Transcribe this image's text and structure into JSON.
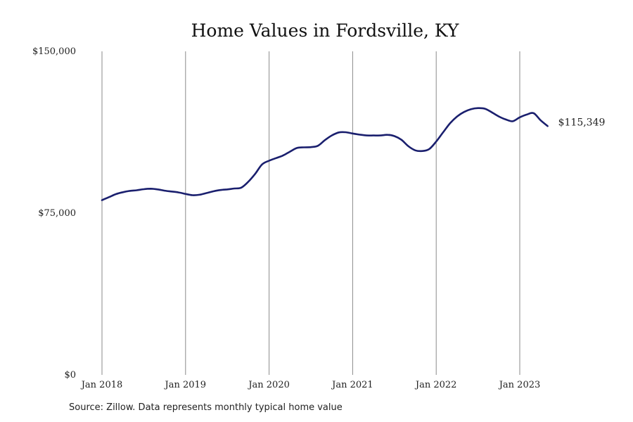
{
  "chart_data": {
    "type": "line",
    "title": "Home Values in Fordsville, KY",
    "xlabel": "",
    "ylabel": "",
    "ylim": [
      0,
      150000
    ],
    "grid": "vertical",
    "color": "#1a1f6e",
    "y_ticks": [
      {
        "value": 0,
        "label": "$0"
      },
      {
        "value": 75000,
        "label": "$75,000"
      },
      {
        "value": 150000,
        "label": "$150,000"
      }
    ],
    "x_ticks": [
      "Jan 2018",
      "Jan 2019",
      "Jan 2020",
      "Jan 2021",
      "Jan 2022",
      "Jan 2023"
    ],
    "x_start": "2018-01",
    "end_label": "$115,349",
    "series": [
      {
        "x": [
          "2018-01",
          "2018-02",
          "2018-03",
          "2018-04",
          "2018-05",
          "2018-06",
          "2018-07",
          "2018-08",
          "2018-09",
          "2018-10",
          "2018-11",
          "2018-12",
          "2019-01",
          "2019-02",
          "2019-03",
          "2019-04",
          "2019-05",
          "2019-06",
          "2019-07",
          "2019-08",
          "2019-09",
          "2019-10",
          "2019-11",
          "2019-12",
          "2020-01",
          "2020-02",
          "2020-03",
          "2020-04",
          "2020-05",
          "2020-06",
          "2020-07",
          "2020-08",
          "2020-09",
          "2020-10",
          "2020-11",
          "2020-12",
          "2021-01",
          "2021-02",
          "2021-03",
          "2021-04",
          "2021-05",
          "2021-06",
          "2021-07",
          "2021-08",
          "2021-09",
          "2021-10",
          "2021-11",
          "2021-12",
          "2022-01",
          "2022-02",
          "2022-03",
          "2022-04",
          "2022-05",
          "2022-06",
          "2022-07",
          "2022-08",
          "2022-09",
          "2022-10",
          "2022-11",
          "2022-12",
          "2023-01",
          "2023-02",
          "2023-03",
          "2023-04",
          "2023-05"
        ],
        "y": [
          81000,
          82400,
          83800,
          84700,
          85300,
          85600,
          86100,
          86300,
          86000,
          85400,
          85000,
          84600,
          83900,
          83300,
          83500,
          84300,
          85100,
          85700,
          86000,
          86400,
          86800,
          89500,
          93200,
          97600,
          99300,
          100500,
          101700,
          103500,
          105200,
          105500,
          105600,
          106200,
          108800,
          111000,
          112400,
          112500,
          111900,
          111400,
          111000,
          111000,
          111000,
          111300,
          110700,
          109000,
          106000,
          104100,
          103800,
          104700,
          108200,
          112500,
          116700,
          119800,
          121900,
          123200,
          123700,
          123400,
          121700,
          119800,
          118400,
          117600,
          119400,
          120700,
          121300,
          118000,
          115349
        ]
      }
    ]
  },
  "source": "Source: Zillow. Data represents monthly typical home value"
}
